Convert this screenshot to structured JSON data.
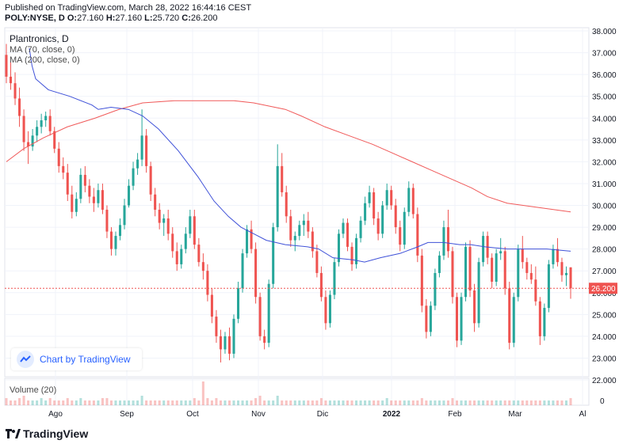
{
  "header": {
    "published": "Published on TradingView.com, March 28, 2022 16:44:16 CEST",
    "symbol": "POLY:NYSE, D",
    "o_label": "O:",
    "o_value": "27.160",
    "h_label": "H:",
    "h_value": "27.160",
    "l_label": "L:",
    "l_value": "25.720",
    "c_label": "C:",
    "c_value": "26.200"
  },
  "legend": {
    "title": "Plantronics, D",
    "ma70": "MA (70, close, 0)",
    "ma200": "MA (200, close, 0)",
    "volume": "Volume (20)"
  },
  "badge": {
    "text": "Chart by TradingView"
  },
  "footer": {
    "brand": "TradingView"
  },
  "colors": {
    "up": "#26a69a",
    "down": "#ef5350",
    "ma70": "#3f51d8",
    "ma200": "#f05a5a",
    "last_price": "#ef5350"
  },
  "chart_data": {
    "type": "candlestick",
    "x_ticks": [
      "Ago",
      "Sep",
      "Oct",
      "Nov",
      "Dic",
      "2022",
      "Feb",
      "Mar",
      "Al"
    ],
    "y_ticks": [
      "38.000",
      "37.000",
      "36.000",
      "35.000",
      "34.000",
      "33.000",
      "32.000",
      "31.000",
      "30.000",
      "29.000",
      "28.000",
      "27.000",
      "26.000",
      "25.000",
      "24.000",
      "23.000",
      "22.000"
    ],
    "ylim": [
      22,
      38
    ],
    "volume_ticks": [
      "0"
    ],
    "last_price": 26.2,
    "last_price_label": "26.200",
    "candles": [
      [
        36.9,
        37.4,
        35.6,
        35.9
      ],
      [
        35.9,
        36.6,
        35.3,
        35.6
      ],
      [
        35.6,
        36.1,
        34.6,
        34.9
      ],
      [
        34.9,
        35.4,
        33.6,
        34.1
      ],
      [
        34.1,
        34.4,
        32.5,
        32.9
      ],
      [
        32.9,
        33.4,
        31.9,
        32.7
      ],
      [
        32.7,
        33.5,
        32.5,
        33.2
      ],
      [
        33.2,
        33.9,
        32.9,
        33.6
      ],
      [
        33.6,
        34.2,
        33.3,
        33.9
      ],
      [
        33.9,
        34.3,
        33.6,
        34.1
      ],
      [
        34.1,
        34.4,
        33.2,
        33.4
      ],
      [
        33.4,
        33.6,
        32.4,
        32.6
      ],
      [
        32.6,
        32.9,
        31.5,
        31.8
      ],
      [
        31.8,
        32.2,
        31.2,
        31.5
      ],
      [
        31.5,
        31.9,
        30.2,
        30.5
      ],
      [
        30.5,
        30.9,
        29.4,
        29.7
      ],
      [
        29.7,
        30.6,
        29.5,
        30.3
      ],
      [
        30.3,
        31.7,
        30.1,
        31.4
      ],
      [
        31.4,
        31.8,
        30.6,
        30.9
      ],
      [
        30.9,
        31.2,
        30.1,
        30.4
      ],
      [
        30.4,
        30.8,
        29.7,
        30.1
      ],
      [
        30.1,
        31.0,
        29.9,
        30.7
      ],
      [
        30.7,
        31.0,
        29.6,
        29.8
      ],
      [
        29.8,
        30.0,
        28.5,
        28.8
      ],
      [
        28.8,
        29.0,
        27.7,
        28.0
      ],
      [
        28.0,
        28.8,
        27.7,
        28.6
      ],
      [
        28.6,
        29.4,
        28.4,
        29.1
      ],
      [
        29.1,
        30.3,
        28.9,
        30.0
      ],
      [
        30.0,
        31.2,
        29.9,
        30.9
      ],
      [
        30.9,
        32.0,
        30.7,
        31.7
      ],
      [
        31.7,
        32.4,
        31.4,
        32.1
      ],
      [
        32.1,
        34.4,
        31.8,
        33.2
      ],
      [
        33.2,
        33.5,
        31.5,
        31.8
      ],
      [
        31.8,
        32.0,
        30.2,
        30.5
      ],
      [
        30.5,
        30.8,
        29.5,
        29.8
      ],
      [
        29.8,
        30.1,
        28.9,
        29.2
      ],
      [
        29.2,
        29.6,
        28.6,
        29.4
      ],
      [
        29.4,
        29.8,
        28.4,
        28.7
      ],
      [
        28.7,
        29.0,
        27.6,
        27.9
      ],
      [
        27.9,
        28.3,
        27.0,
        27.3
      ],
      [
        27.3,
        28.2,
        27.1,
        28.0
      ],
      [
        28.0,
        29.0,
        27.8,
        28.7
      ],
      [
        28.7,
        29.8,
        28.5,
        29.5
      ],
      [
        29.5,
        29.8,
        28.0,
        28.2
      ],
      [
        28.2,
        28.5,
        27.2,
        27.4
      ],
      [
        27.4,
        27.8,
        26.6,
        27.0
      ],
      [
        27.0,
        27.3,
        25.6,
        25.9
      ],
      [
        25.9,
        26.2,
        24.6,
        24.9
      ],
      [
        24.9,
        25.2,
        23.7,
        24.0
      ],
      [
        24.0,
        24.3,
        22.8,
        23.4
      ],
      [
        23.4,
        24.2,
        23.2,
        24.0
      ],
      [
        24.0,
        24.4,
        22.9,
        23.2
      ],
      [
        23.2,
        25.0,
        23.0,
        24.8
      ],
      [
        24.8,
        26.5,
        24.6,
        26.2
      ],
      [
        26.2,
        28.0,
        26.0,
        27.8
      ],
      [
        27.8,
        29.1,
        27.6,
        28.9
      ],
      [
        28.9,
        29.3,
        27.8,
        28.0
      ],
      [
        28.0,
        28.3,
        25.5,
        25.8
      ],
      [
        25.8,
        26.0,
        23.8,
        24.0
      ],
      [
        24.0,
        24.3,
        23.4,
        23.7
      ],
      [
        23.7,
        26.6,
        23.5,
        26.4
      ],
      [
        26.4,
        29.2,
        26.2,
        29.0
      ],
      [
        29.0,
        32.8,
        28.8,
        31.8
      ],
      [
        31.8,
        32.4,
        30.4,
        30.6
      ],
      [
        30.6,
        30.9,
        29.2,
        29.5
      ],
      [
        29.5,
        29.8,
        28.1,
        28.4
      ],
      [
        28.4,
        28.8,
        27.9,
        28.6
      ],
      [
        28.6,
        29.3,
        28.4,
        29.1
      ],
      [
        29.1,
        29.6,
        28.6,
        29.3
      ],
      [
        29.3,
        29.7,
        28.5,
        28.8
      ],
      [
        28.8,
        29.0,
        27.6,
        27.9
      ],
      [
        27.9,
        28.2,
        26.7,
        26.9
      ],
      [
        26.9,
        27.2,
        25.6,
        25.8
      ],
      [
        25.8,
        26.1,
        24.3,
        24.6
      ],
      [
        24.6,
        26.1,
        24.4,
        25.9
      ],
      [
        25.9,
        27.6,
        25.7,
        27.4
      ],
      [
        27.4,
        28.9,
        27.2,
        28.7
      ],
      [
        28.7,
        29.4,
        28.5,
        29.2
      ],
      [
        29.2,
        29.4,
        27.9,
        28.1
      ],
      [
        28.1,
        28.3,
        27.0,
        27.3
      ],
      [
        27.3,
        28.7,
        27.1,
        28.5
      ],
      [
        28.5,
        29.5,
        28.3,
        29.3
      ],
      [
        29.3,
        30.4,
        29.1,
        30.1
      ],
      [
        30.1,
        30.9,
        29.9,
        30.6
      ],
      [
        30.6,
        30.8,
        29.1,
        29.4
      ],
      [
        29.4,
        29.7,
        28.4,
        28.7
      ],
      [
        28.7,
        30.2,
        28.5,
        30.0
      ],
      [
        30.0,
        31.0,
        29.8,
        30.7
      ],
      [
        30.7,
        30.9,
        29.8,
        30.0
      ],
      [
        30.0,
        30.3,
        28.7,
        29.0
      ],
      [
        29.0,
        29.3,
        27.9,
        28.2
      ],
      [
        28.2,
        29.9,
        28.0,
        29.7
      ],
      [
        29.7,
        31.1,
        29.5,
        30.8
      ],
      [
        30.8,
        31.0,
        29.4,
        29.6
      ],
      [
        29.6,
        29.9,
        27.4,
        27.7
      ],
      [
        27.7,
        28.0,
        25.1,
        25.4
      ],
      [
        25.4,
        25.7,
        23.9,
        24.2
      ],
      [
        24.2,
        25.6,
        24.0,
        25.4
      ],
      [
        25.4,
        27.1,
        25.2,
        26.9
      ],
      [
        26.9,
        27.9,
        26.7,
        27.7
      ],
      [
        27.7,
        29.3,
        27.5,
        29.0
      ],
      [
        29.0,
        29.8,
        27.6,
        27.9
      ],
      [
        27.9,
        28.1,
        25.5,
        25.8
      ],
      [
        25.8,
        26.0,
        23.5,
        23.8
      ],
      [
        23.8,
        26.0,
        23.6,
        25.8
      ],
      [
        25.8,
        28.3,
        25.6,
        28.1
      ],
      [
        28.1,
        28.4,
        25.8,
        26.1
      ],
      [
        26.1,
        26.4,
        24.2,
        24.6
      ],
      [
        24.6,
        27.6,
        24.4,
        27.4
      ],
      [
        27.4,
        28.8,
        27.2,
        28.6
      ],
      [
        28.6,
        28.8,
        27.3,
        27.6
      ],
      [
        27.6,
        27.8,
        26.2,
        26.5
      ],
      [
        26.5,
        28.0,
        26.3,
        27.8
      ],
      [
        27.8,
        28.5,
        27.5,
        27.9
      ],
      [
        27.9,
        28.1,
        25.9,
        26.2
      ],
      [
        26.2,
        26.5,
        23.4,
        23.7
      ],
      [
        23.7,
        26.0,
        23.5,
        25.8
      ],
      [
        25.8,
        28.2,
        25.6,
        28.0
      ],
      [
        28.0,
        28.6,
        27.1,
        27.4
      ],
      [
        27.4,
        27.6,
        26.6,
        26.9
      ],
      [
        26.9,
        27.3,
        26.4,
        26.6
      ],
      [
        26.6,
        27.2,
        25.4,
        25.6
      ],
      [
        25.6,
        25.8,
        23.6,
        24.0
      ],
      [
        24.0,
        25.5,
        23.8,
        25.3
      ],
      [
        25.3,
        27.5,
        25.1,
        27.3
      ],
      [
        27.3,
        28.2,
        27.1,
        28.0
      ],
      [
        28.0,
        28.5,
        27.2,
        27.4
      ],
      [
        27.4,
        27.6,
        26.5,
        26.8
      ],
      [
        26.8,
        27.2,
        26.3,
        26.9
      ],
      [
        27.16,
        27.16,
        25.72,
        26.2
      ]
    ],
    "ma70": [
      [
        37.2,
        37.0
      ],
      [
        36.4,
        40.4
      ],
      [
        35.8,
        45.0
      ],
      [
        35.3,
        61.0
      ],
      [
        35.0,
        88.0
      ],
      [
        34.6,
        116.0
      ],
      [
        34.4,
        124.0
      ],
      [
        34.5,
        140.0
      ],
      [
        34.4,
        162.0
      ],
      [
        34.1,
        180.0
      ],
      [
        33.5,
        200.0
      ],
      [
        32.5,
        225.0
      ],
      [
        31.3,
        250.0
      ],
      [
        30.2,
        270.0
      ],
      [
        29.5,
        288.0
      ],
      [
        29.0,
        304.0
      ],
      [
        28.7,
        320.0
      ],
      [
        28.4,
        336.0
      ],
      [
        28.2,
        360.0
      ],
      [
        28.1,
        388.0
      ],
      [
        28.0,
        402.0
      ],
      [
        27.6,
        420.0
      ],
      [
        27.5,
        446.0
      ],
      [
        27.4,
        460.0
      ],
      [
        27.6,
        480.0
      ],
      [
        27.8,
        505.0
      ],
      [
        28.1,
        527.0
      ],
      [
        28.3,
        540.0
      ],
      [
        28.3,
        560.0
      ],
      [
        28.2,
        580.0
      ],
      [
        28.2,
        594.0
      ],
      [
        28.1,
        612.0
      ],
      [
        28.0,
        640.0
      ],
      [
        28.0,
        670.0
      ],
      [
        28.0,
        690.0
      ],
      [
        27.9,
        720.0
      ]
    ],
    "ma200": [
      [
        32.0,
        8.0
      ],
      [
        32.6,
        30.0
      ],
      [
        33.1,
        55.0
      ],
      [
        33.6,
        85.0
      ],
      [
        34.0,
        120.0
      ],
      [
        34.4,
        150.0
      ],
      [
        34.7,
        180.0
      ],
      [
        34.8,
        220.0
      ],
      [
        34.8,
        260.0
      ],
      [
        34.8,
        295.0
      ],
      [
        34.7,
        320.0
      ],
      [
        34.4,
        360.0
      ],
      [
        34.1,
        380.0
      ],
      [
        33.6,
        410.0
      ],
      [
        33.2,
        440.0
      ],
      [
        32.8,
        470.0
      ],
      [
        32.4,
        495.0
      ],
      [
        32.0,
        520.0
      ],
      [
        31.6,
        545.0
      ],
      [
        31.2,
        570.0
      ],
      [
        30.8,
        595.0
      ],
      [
        30.4,
        615.0
      ],
      [
        30.1,
        640.0
      ],
      [
        29.9,
        680.0
      ],
      [
        29.7,
        720.0
      ]
    ],
    "volumes": [
      0.3,
      0.2,
      0.2,
      0.3,
      0.4,
      0.2,
      0.2,
      0.2,
      0.3,
      0.2,
      0.3,
      0.2,
      0.2,
      0.2,
      0.3,
      0.2,
      0.2,
      0.3,
      0.2,
      0.2,
      0.2,
      0.2,
      0.3,
      0.3,
      0.2,
      0.2,
      0.2,
      0.2,
      0.2,
      0.2,
      0.2,
      0.4,
      0.2,
      0.2,
      0.2,
      0.2,
      0.2,
      0.2,
      0.2,
      0.2,
      0.2,
      0.2,
      0.2,
      0.3,
      0.2,
      1.0,
      0.3,
      0.2,
      0.3,
      0.2,
      0.2,
      0.2,
      0.2,
      0.2,
      0.2,
      0.2,
      0.2,
      0.3,
      0.4,
      0.2,
      0.2,
      0.2,
      0.4,
      0.2,
      0.2,
      0.2,
      0.2,
      0.2,
      0.2,
      0.2,
      0.2,
      0.2,
      0.3,
      0.2,
      0.2,
      0.2,
      0.2,
      0.2,
      0.2,
      0.2,
      0.2,
      0.2,
      0.2,
      0.2,
      0.2,
      0.2,
      0.2,
      0.3,
      0.2,
      0.2,
      0.2,
      0.2,
      0.2,
      0.2,
      0.2,
      0.3,
      0.2,
      0.2,
      0.2,
      0.2,
      0.2,
      0.2,
      0.3,
      0.2,
      0.2,
      0.2,
      0.2,
      0.2,
      0.2,
      0.2,
      0.2,
      0.2,
      0.2,
      0.2,
      0.2,
      0.2,
      0.2,
      0.2,
      0.2,
      0.2,
      0.2,
      0.2,
      0.2,
      0.2,
      0.2,
      0.2,
      0.2,
      0.2,
      0.2,
      0.3
    ]
  }
}
